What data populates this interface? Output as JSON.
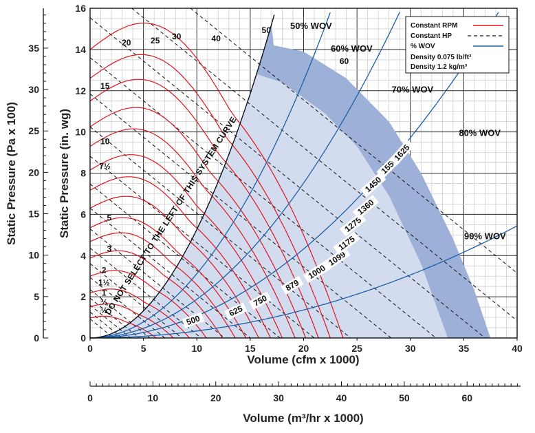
{
  "chart_data": {
    "type": "line",
    "title": "",
    "xlabel": "Volume (cfm x 1000)",
    "ylabel": "Static Pressure (in. wg)",
    "secondary_xlabel": "Volume (m³/hr x 1000)",
    "secondary_ylabel": "Static Pressure (Pa x 100)",
    "xlim": [
      0,
      40
    ],
    "ylim": [
      0,
      16
    ],
    "x_ticks": [
      0,
      5,
      10,
      15,
      20,
      25,
      30,
      35,
      40
    ],
    "y_ticks": [
      0,
      2,
      4,
      6,
      8,
      10,
      12,
      14,
      16
    ],
    "secondary_x_ticks": [
      0,
      10,
      20,
      30,
      40,
      50,
      60
    ],
    "secondary_y_ticks": [
      0,
      5,
      10,
      15,
      20,
      25,
      30,
      35
    ],
    "grid": true,
    "legend": {
      "position": "top-right",
      "entries": [
        {
          "label": "Constant RPM",
          "style": "solid",
          "color": "#e0141e"
        },
        {
          "label": "Constant HP",
          "style": "dashed",
          "color": "#111111"
        },
        {
          "label": "% WOV",
          "style": "solid",
          "color": "#1a5fa8"
        },
        {
          "label": "Density 0.075 lb/ft³",
          "style": "none"
        },
        {
          "label": "Density 1.2 kg/m³",
          "style": "none"
        }
      ]
    },
    "rpm_curves": [
      {
        "rpm": "500",
        "shutoff_sp": 0.97,
        "free_cfm": 6.2
      },
      {
        "rpm": "625",
        "shutoff_sp": 1.52,
        "free_cfm": 7.8
      },
      {
        "rpm": "750",
        "shutoff_sp": 2.18,
        "free_cfm": 9.3
      },
      {
        "rpm": "879",
        "shutoff_sp": 3.0,
        "free_cfm": 10.9
      },
      {
        "rpm": "1000",
        "shutoff_sp": 3.88,
        "free_cfm": 12.4
      },
      {
        "rpm": "1099",
        "shutoff_sp": 4.68,
        "free_cfm": 13.6
      },
      {
        "rpm": "1175",
        "shutoff_sp": 5.35,
        "free_cfm": 14.6
      },
      {
        "rpm": "1275",
        "shutoff_sp": 6.3,
        "free_cfm": 15.8
      },
      {
        "rpm": "1360",
        "shutoff_sp": 7.17,
        "free_cfm": 16.9
      },
      {
        "rpm": "1450",
        "shutoff_sp": 8.15,
        "free_cfm": 18.0
      },
      {
        "rpm": "1550",
        "shutoff_sp": 9.3,
        "free_cfm": 19.2
      },
      {
        "rpm": "1625",
        "shutoff_sp": 10.25,
        "free_cfm": 20.2
      },
      {
        "rpm": "",
        "shutoff_sp": 11.5,
        "free_cfm": 21.4
      },
      {
        "rpm": "",
        "shutoff_sp": 12.6,
        "free_cfm": 22.5
      },
      {
        "rpm": "",
        "shutoff_sp": 14.0,
        "free_cfm": 23.7
      }
    ],
    "rpm_labels": [
      {
        "text": "500",
        "x": 9.7,
        "y": 0.8,
        "angle": -20
      },
      {
        "text": "625",
        "x": 13.7,
        "y": 1.25,
        "angle": -25
      },
      {
        "text": "750",
        "x": 16.0,
        "y": 1.75,
        "angle": -28
      },
      {
        "text": "879",
        "x": 19.0,
        "y": 2.5,
        "angle": -30
      },
      {
        "text": "1000",
        "x": 21.3,
        "y": 3.15,
        "angle": -32
      },
      {
        "text": "1099",
        "x": 23.2,
        "y": 3.8,
        "angle": -34
      },
      {
        "text": "1175",
        "x": 24.1,
        "y": 4.55,
        "angle": -36
      },
      {
        "text": "1275",
        "x": 24.7,
        "y": 5.45,
        "angle": -38
      },
      {
        "text": "1360",
        "x": 25.9,
        "y": 6.3,
        "angle": -40
      },
      {
        "text": "1450",
        "x": 26.6,
        "y": 7.4,
        "angle": -42
      },
      {
        "text": "1550",
        "x": 28.1,
        "y": 8.3,
        "angle": -45
      },
      {
        "text": "1625",
        "x": 29.3,
        "y": 8.95,
        "angle": -48
      }
    ],
    "hp_labels": [
      {
        "text": "½",
        "x": 1.3,
        "y": 1.2
      },
      {
        "text": "¾",
        "x": 1.3,
        "y": 1.6
      },
      {
        "text": "1",
        "x": 1.3,
        "y": 2.05
      },
      {
        "text": "1½",
        "x": 1.3,
        "y": 2.55
      },
      {
        "text": "2",
        "x": 1.3,
        "y": 3.15
      },
      {
        "text": "3",
        "x": 1.8,
        "y": 4.2
      },
      {
        "text": "5",
        "x": 1.8,
        "y": 5.7
      },
      {
        "text": "7½",
        "x": 1.4,
        "y": 8.2
      },
      {
        "text": "10",
        "x": 1.4,
        "y": 9.4
      },
      {
        "text": "15",
        "x": 1.4,
        "y": 12.1
      },
      {
        "text": "20",
        "x": 3.4,
        "y": 14.2
      },
      {
        "text": "25",
        "x": 6.1,
        "y": 14.3
      },
      {
        "text": "30",
        "x": 8.1,
        "y": 14.5
      },
      {
        "text": "40",
        "x": 11.8,
        "y": 14.4
      },
      {
        "text": "50",
        "x": 16.5,
        "y": 14.8
      },
      {
        "text": "60",
        "x": 23.8,
        "y": 13.3
      }
    ],
    "wov_curves": [
      {
        "label": "50% WOV",
        "k": 0.0527,
        "x_end": 21.3,
        "label_x": 20.7,
        "label_y": 15.0
      },
      {
        "label": "60% WOV",
        "k": 0.0312,
        "x_end": 24.0,
        "label_x": 24.5,
        "label_y": 13.9
      },
      {
        "label": "70% WOV",
        "k": 0.0188,
        "x_end": 29.2,
        "label_x": 30.2,
        "label_y": 11.9
      },
      {
        "label": "80% WOV",
        "k": 0.0108,
        "x_end": 38.5,
        "label_x": 36.5,
        "label_y": 9.8
      },
      {
        "label": "90% WOV",
        "k": 0.0034,
        "x_end": 40.0,
        "label_x": 37.0,
        "label_y": 4.8
      }
    ],
    "system_curve": {
      "k": 0.0527,
      "x_end": 17.4,
      "label": "DO NOT SELECT TO THE LEFT OF THIS SYSTEM CURVE"
    },
    "region_boundary": [
      [
        17.2,
        14.2
      ],
      [
        20,
        13.9
      ],
      [
        24,
        12.6
      ],
      [
        28,
        10.5
      ],
      [
        31,
        8.0
      ],
      [
        34,
        4.8
      ],
      [
        36,
        2.3
      ],
      [
        37.5,
        0
      ]
    ],
    "inner_boundary": [
      [
        15.6,
        12.8
      ],
      [
        18,
        12.4
      ],
      [
        22,
        10.9
      ],
      [
        25,
        9.3
      ],
      [
        28,
        6.9
      ],
      [
        31,
        3.6
      ],
      [
        33.5,
        0
      ]
    ]
  }
}
